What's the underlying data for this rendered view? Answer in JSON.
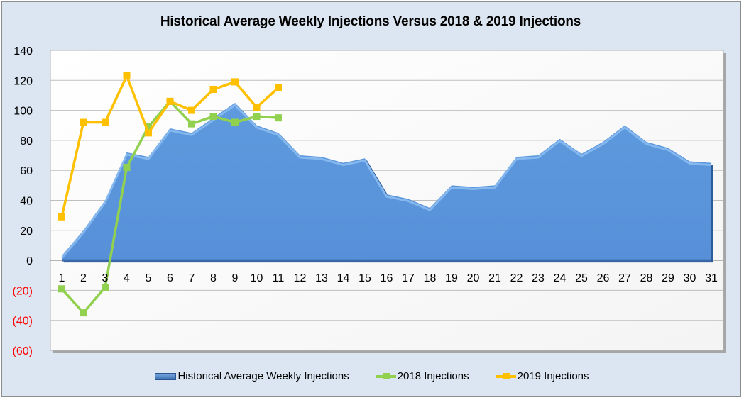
{
  "chart_data": {
    "type": "area",
    "title": "Historical Average Weekly Injections Versus 2018 & 2019 Injections",
    "xlabel": "",
    "ylabel": "",
    "ylim": [
      -60,
      140
    ],
    "yticks": [
      140,
      120,
      100,
      80,
      60,
      40,
      20,
      0,
      -20,
      -40,
      -60
    ],
    "ytick_labels": [
      "140",
      "120",
      "100",
      "80",
      "60",
      "40",
      "20",
      "0",
      "(20)",
      "(40)",
      "(60)"
    ],
    "categories": [
      "1",
      "2",
      "3",
      "4",
      "5",
      "6",
      "7",
      "8",
      "9",
      "10",
      "11",
      "12",
      "13",
      "14",
      "15",
      "16",
      "17",
      "18",
      "19",
      "20",
      "21",
      "22",
      "23",
      "24",
      "25",
      "26",
      "27",
      "28",
      "29",
      "30",
      "31"
    ],
    "grid": true,
    "legend_position": "bottom",
    "series": [
      {
        "name": "Historical Average Weekly Injections",
        "kind": "area",
        "color": "#5b97dc",
        "values": [
          3,
          20,
          40,
          72,
          69,
          88,
          85,
          95,
          105,
          90,
          85,
          70,
          69,
          65,
          68,
          44,
          41,
          35,
          50,
          49,
          50,
          69,
          70,
          81,
          71,
          79,
          90,
          79,
          75,
          66,
          65
        ]
      },
      {
        "name": "2018 Injections",
        "kind": "line",
        "color": "#92d050",
        "values": [
          -19,
          -35,
          -18,
          62,
          89,
          106,
          91,
          96,
          92,
          96,
          95
        ]
      },
      {
        "name": "2019 Injections",
        "kind": "line",
        "color": "#ffc000",
        "values": [
          29,
          92,
          92,
          123,
          85,
          106,
          100,
          114,
          119,
          102,
          115
        ]
      }
    ],
    "colors": {
      "negative_tick": "#ff0000",
      "background": "#dce6f2",
      "plot_bg": "#fbfbfb"
    }
  }
}
